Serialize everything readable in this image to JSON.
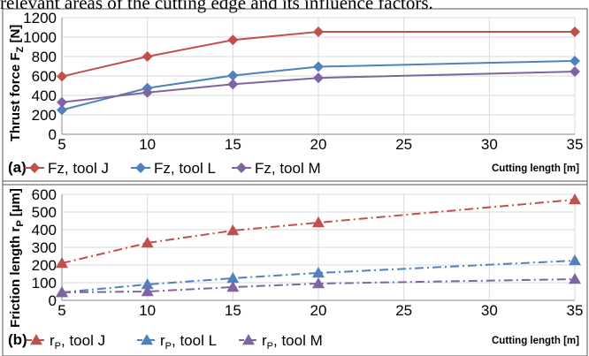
{
  "caption": "relevant areas of the cutting edge and its influence factors.",
  "chart_data": [
    {
      "type": "line",
      "panel_label": "(a)",
      "xlabel": "Cutting length [m]",
      "ylabel": "Thrust force F",
      "ylabel_sub": "Z",
      "ylabel_unit": " [N]",
      "xlim": [
        5,
        35
      ],
      "ylim": [
        0,
        1200
      ],
      "xticks": [
        5,
        10,
        15,
        20,
        25,
        30,
        35
      ],
      "yticks": [
        0,
        200,
        400,
        600,
        800,
        1000,
        1200
      ],
      "grid": true,
      "legend_position": "bottom-left",
      "series": [
        {
          "name": "Fz, tool J",
          "color": "#c0504d",
          "marker": "diamond",
          "dash": "solid",
          "x": [
            5,
            10,
            15,
            20,
            35
          ],
          "y": [
            595,
            800,
            970,
            1055,
            1055
          ]
        },
        {
          "name": "Fz, tool L",
          "color": "#4f81bd",
          "marker": "diamond",
          "dash": "solid",
          "x": [
            5,
            10,
            15,
            20,
            35
          ],
          "y": [
            250,
            475,
            605,
            695,
            755
          ]
        },
        {
          "name": "Fz, tool M",
          "color": "#8064a2",
          "marker": "diamond",
          "dash": "solid",
          "x": [
            5,
            10,
            15,
            20,
            35
          ],
          "y": [
            330,
            430,
            515,
            580,
            645
          ]
        }
      ]
    },
    {
      "type": "line",
      "panel_label": "(b)",
      "xlabel": "Cutting length [m]",
      "ylabel": "Friction length r",
      "ylabel_sub": "P",
      "ylabel_unit": " [µm]",
      "xlim": [
        5,
        35
      ],
      "ylim": [
        0,
        600
      ],
      "xticks": [
        5,
        10,
        15,
        20,
        25,
        30,
        35
      ],
      "yticks": [
        0,
        100,
        200,
        300,
        400,
        500,
        600
      ],
      "grid": true,
      "legend_position": "bottom-left",
      "series": [
        {
          "name": "r",
          "name_sub": "P",
          "name_rest": ", tool J",
          "color": "#c0504d",
          "marker": "triangle",
          "dash": "dashdot",
          "x": [
            5,
            10,
            15,
            20,
            35
          ],
          "y": [
            210,
            325,
            395,
            440,
            570
          ]
        },
        {
          "name": "r",
          "name_sub": "P",
          "name_rest": ", tool L",
          "color": "#4f81bd",
          "marker": "triangle",
          "dash": "dashdot",
          "x": [
            5,
            10,
            15,
            20,
            35
          ],
          "y": [
            45,
            90,
            125,
            155,
            225
          ]
        },
        {
          "name": "r",
          "name_sub": "P",
          "name_rest": ", tool M",
          "color": "#8064a2",
          "marker": "triangle",
          "dash": "dashdot",
          "x": [
            5,
            10,
            15,
            20,
            35
          ],
          "y": [
            45,
            50,
            75,
            95,
            120
          ]
        }
      ]
    }
  ]
}
